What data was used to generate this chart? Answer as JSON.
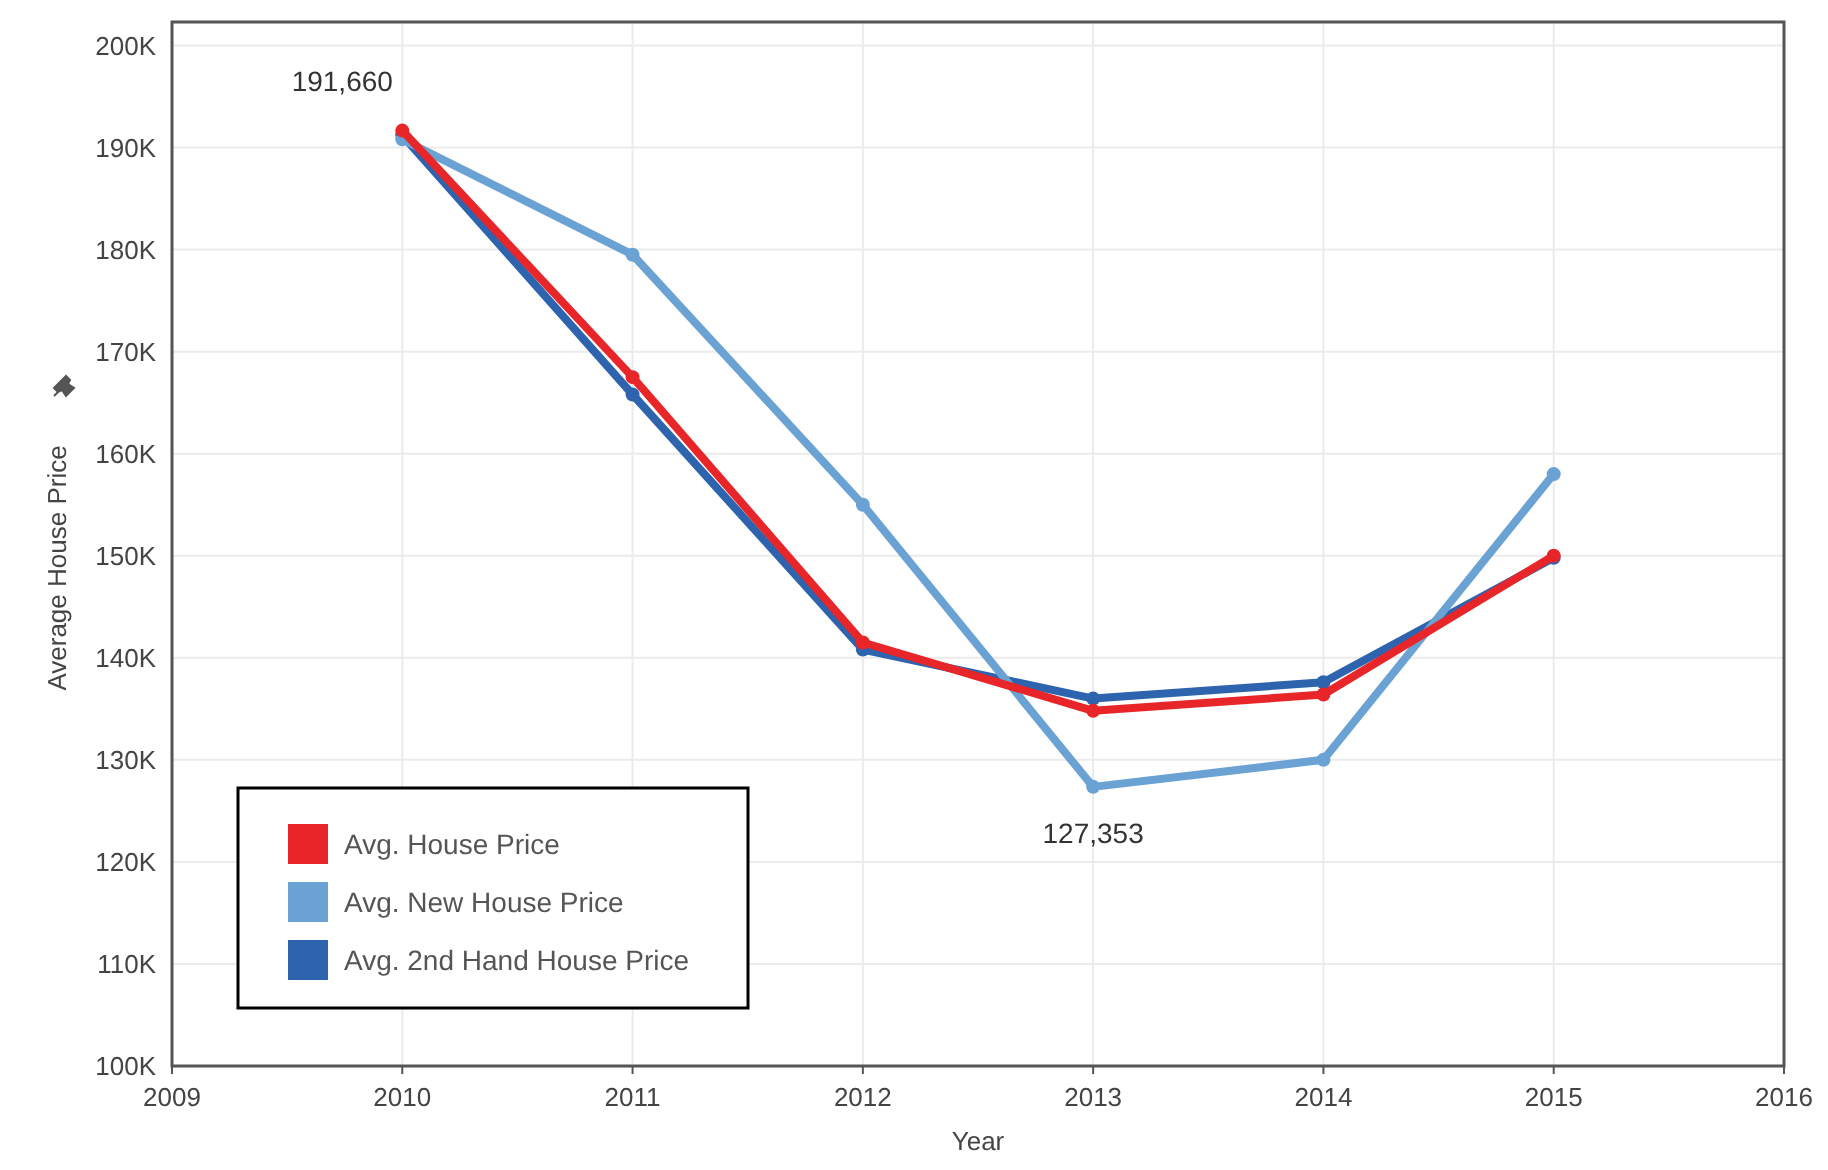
{
  "chart_data": {
    "type": "line",
    "xlabel": "Year",
    "ylabel": "Average House Price",
    "x": [
      2010,
      2011,
      2012,
      2013,
      2014,
      2015
    ],
    "series": [
      {
        "name": "Avg. House Price",
        "color": "#e8262a",
        "values": [
          191660,
          167500,
          141500,
          134800,
          136400,
          150000
        ]
      },
      {
        "name": "Avg. New House Price",
        "color": "#6aa2d4",
        "values": [
          190800,
          179500,
          155000,
          127353,
          130000,
          158000
        ]
      },
      {
        "name": "Avg. 2nd Hand House Price",
        "color": "#2e63ad",
        "values": [
          191200,
          165800,
          140800,
          136000,
          137600,
          149800
        ]
      }
    ],
    "annotations": [
      {
        "text": "191,660",
        "x": 2010,
        "y": 191660
      },
      {
        "text": "127,353",
        "x": 2013,
        "y": 127353
      }
    ],
    "xlim": [
      2009,
      2016
    ],
    "xticks": [
      2009,
      2010,
      2011,
      2012,
      2013,
      2014,
      2015,
      2016
    ],
    "ylim": [
      100000,
      202300
    ],
    "yticks": [
      {
        "value": 100000,
        "label": "100K"
      },
      {
        "value": 110000,
        "label": "110K"
      },
      {
        "value": 120000,
        "label": "120K"
      },
      {
        "value": 130000,
        "label": "130K"
      },
      {
        "value": 140000,
        "label": "140K"
      },
      {
        "value": 150000,
        "label": "150K"
      },
      {
        "value": 160000,
        "label": "160K"
      },
      {
        "value": 170000,
        "label": "170K"
      },
      {
        "value": 180000,
        "label": "180K"
      },
      {
        "value": 190000,
        "label": "190K"
      },
      {
        "value": 200000,
        "label": "200K"
      }
    ],
    "grid": true,
    "legend": "bottom left",
    "marker": "circle",
    "line_style": "solid"
  }
}
